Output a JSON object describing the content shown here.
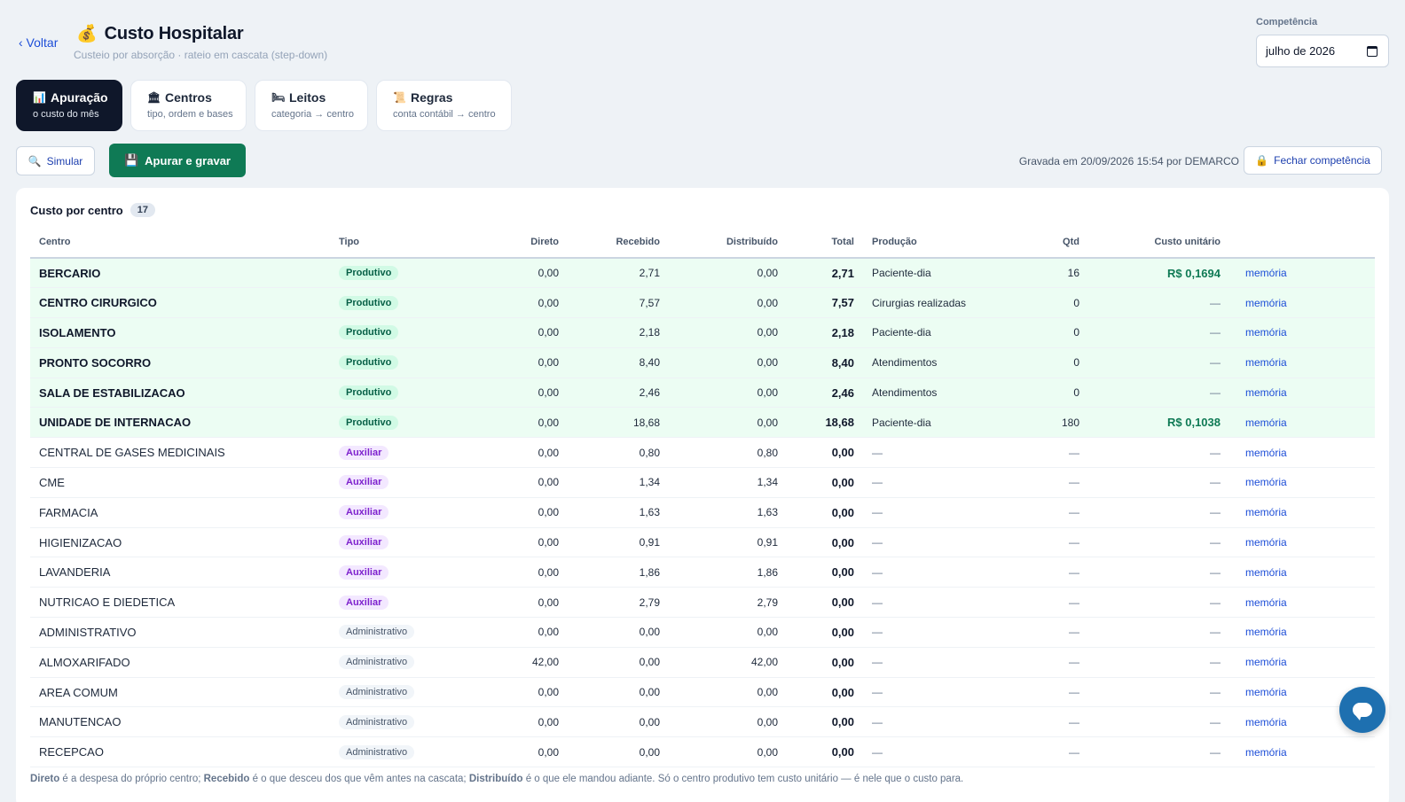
{
  "header": {
    "back_label": "‹ Voltar",
    "title_icon": "💰",
    "title": "Custo Hospitalar",
    "subtitle": "Custeio por absorção · rateio em cascata (step-down)",
    "competencia_label": "Competência",
    "competencia_value": "julho de 2026"
  },
  "tabs": [
    {
      "icon": "📊",
      "label": "Apuração",
      "sub": "o custo do mês"
    },
    {
      "icon": "🏛",
      "label": "Centros",
      "sub": "tipo, ordem e bases"
    },
    {
      "icon": "🛏",
      "label": "Leitos",
      "sub": "categoria → centro"
    },
    {
      "icon": "📜",
      "label": "Regras",
      "sub": "conta contábil → centro"
    }
  ],
  "toolbar": {
    "simular_icon": "🔍",
    "simular_label": "Simular",
    "apurar_icon": "💾",
    "apurar_label": "Apurar e gravar",
    "saved_info": "Gravada em 20/09/2026 15:54 por DEMARCO",
    "fechar_icon": "🔒",
    "fechar_label": "Fechar competência"
  },
  "card": {
    "title": "Custo por centro",
    "count": "17",
    "columns": [
      "Centro",
      "Tipo",
      "Direto",
      "Recebido",
      "Distribuído",
      "Total",
      "Produção",
      "Qtd",
      "Custo unitário"
    ],
    "memoria_label": "memória"
  },
  "rows": [
    {
      "centro": "BERCARIO",
      "tipo": "Produtivo",
      "direto": "0,00",
      "recebido": "2,71",
      "distribuido": "0,00",
      "total": "2,71",
      "producao": "Paciente-dia",
      "qtd": "16",
      "unit": "R$ 0,1694"
    },
    {
      "centro": "CENTRO CIRURGICO",
      "tipo": "Produtivo",
      "direto": "0,00",
      "recebido": "7,57",
      "distribuido": "0,00",
      "total": "7,57",
      "producao": "Cirurgias realizadas",
      "qtd": "0",
      "unit": "—"
    },
    {
      "centro": "ISOLAMENTO",
      "tipo": "Produtivo",
      "direto": "0,00",
      "recebido": "2,18",
      "distribuido": "0,00",
      "total": "2,18",
      "producao": "Paciente-dia",
      "qtd": "0",
      "unit": "—"
    },
    {
      "centro": "PRONTO SOCORRO",
      "tipo": "Produtivo",
      "direto": "0,00",
      "recebido": "8,40",
      "distribuido": "0,00",
      "total": "8,40",
      "producao": "Atendimentos",
      "qtd": "0",
      "unit": "—"
    },
    {
      "centro": "SALA DE ESTABILIZACAO",
      "tipo": "Produtivo",
      "direto": "0,00",
      "recebido": "2,46",
      "distribuido": "0,00",
      "total": "2,46",
      "producao": "Atendimentos",
      "qtd": "0",
      "unit": "—"
    },
    {
      "centro": "UNIDADE DE INTERNACAO",
      "tipo": "Produtivo",
      "direto": "0,00",
      "recebido": "18,68",
      "distribuido": "0,00",
      "total": "18,68",
      "producao": "Paciente-dia",
      "qtd": "180",
      "unit": "R$ 0,1038"
    },
    {
      "centro": "CENTRAL DE GASES MEDICINAIS",
      "tipo": "Auxiliar",
      "direto": "0,00",
      "recebido": "0,80",
      "distribuido": "0,80",
      "total": "0,00",
      "producao": "—",
      "qtd": "—",
      "unit": "—"
    },
    {
      "centro": "CME",
      "tipo": "Auxiliar",
      "direto": "0,00",
      "recebido": "1,34",
      "distribuido": "1,34",
      "total": "0,00",
      "producao": "—",
      "qtd": "—",
      "unit": "—"
    },
    {
      "centro": "FARMACIA",
      "tipo": "Auxiliar",
      "direto": "0,00",
      "recebido": "1,63",
      "distribuido": "1,63",
      "total": "0,00",
      "producao": "—",
      "qtd": "—",
      "unit": "—"
    },
    {
      "centro": "HIGIENIZACAO",
      "tipo": "Auxiliar",
      "direto": "0,00",
      "recebido": "0,91",
      "distribuido": "0,91",
      "total": "0,00",
      "producao": "—",
      "qtd": "—",
      "unit": "—"
    },
    {
      "centro": "LAVANDERIA",
      "tipo": "Auxiliar",
      "direto": "0,00",
      "recebido": "1,86",
      "distribuido": "1,86",
      "total": "0,00",
      "producao": "—",
      "qtd": "—",
      "unit": "—"
    },
    {
      "centro": "NUTRICAO E DIEDETICA",
      "tipo": "Auxiliar",
      "direto": "0,00",
      "recebido": "2,79",
      "distribuido": "2,79",
      "total": "0,00",
      "producao": "—",
      "qtd": "—",
      "unit": "—"
    },
    {
      "centro": "ADMINISTRATIVO",
      "tipo": "Administrativo",
      "direto": "0,00",
      "recebido": "0,00",
      "distribuido": "0,00",
      "total": "0,00",
      "producao": "—",
      "qtd": "—",
      "unit": "—"
    },
    {
      "centro": "ALMOXARIFADO",
      "tipo": "Administrativo",
      "direto": "42,00",
      "recebido": "0,00",
      "distribuido": "42,00",
      "total": "0,00",
      "producao": "—",
      "qtd": "—",
      "unit": "—"
    },
    {
      "centro": "AREA COMUM",
      "tipo": "Administrativo",
      "direto": "0,00",
      "recebido": "0,00",
      "distribuido": "0,00",
      "total": "0,00",
      "producao": "—",
      "qtd": "—",
      "unit": "—"
    },
    {
      "centro": "MANUTENCAO",
      "tipo": "Administrativo",
      "direto": "0,00",
      "recebido": "0,00",
      "distribuido": "0,00",
      "total": "0,00",
      "producao": "—",
      "qtd": "—",
      "unit": "—"
    },
    {
      "centro": "RECEPCAO",
      "tipo": "Administrativo",
      "direto": "0,00",
      "recebido": "0,00",
      "distribuido": "0,00",
      "total": "0,00",
      "producao": "—",
      "qtd": "—",
      "unit": "—"
    }
  ],
  "footnote": {
    "t1": "Direto",
    "t2": " é a despesa do próprio centro; ",
    "t3": "Recebido",
    "t4": " é o que desceu dos que vêm antes na cascata; ",
    "t5": "Distribuído",
    "t6": " é o que ele mandou adiante. Só o centro produtivo tem custo unitário — é nele que o custo para."
  },
  "colors": {
    "accent": "#0f7a55",
    "tab_active_bg": "#0f172a",
    "produtivo_row_bg": "#ecfdf3",
    "link": "#1d4ed8",
    "chat_fab": "#1e70b0"
  },
  "icons": {
    "chat_fab": "chat-bubble-icon"
  }
}
